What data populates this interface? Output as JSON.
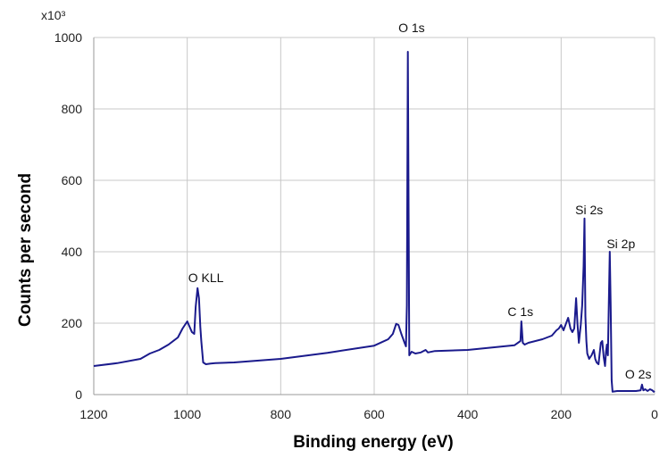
{
  "chart_data": {
    "type": "line",
    "xlabel": "Binding energy (eV)",
    "ylabel": "Counts per second",
    "y_multiplier_label": "x10³",
    "xlim": [
      1200,
      0
    ],
    "ylim": [
      0,
      1000
    ],
    "x_reversed": true,
    "grid": true,
    "x_ticks": [
      1200,
      1000,
      800,
      600,
      400,
      200,
      0
    ],
    "y_ticks": [
      0,
      200,
      400,
      600,
      800,
      1000
    ],
    "series": [
      {
        "color": "#1a1a8c",
        "x": [
          1200,
          1150,
          1100,
          1080,
          1060,
          1040,
          1020,
          1010,
          1000,
          995,
          990,
          985,
          982,
          978,
          975,
          972,
          970,
          966,
          960,
          950,
          940,
          900,
          800,
          700,
          600,
          570,
          560,
          553,
          548,
          542,
          535,
          532,
          530,
          528,
          525,
          520,
          512,
          500,
          490,
          485,
          470,
          400,
          300,
          287,
          285,
          282,
          278,
          270,
          240,
          220,
          210,
          205,
          200,
          195,
          185,
          180,
          176,
          172,
          168,
          165,
          162,
          158,
          155,
          152,
          150,
          148,
          146,
          144,
          140,
          135,
          130,
          127,
          124,
          120,
          115,
          112,
          109,
          106,
          104,
          102,
          100,
          98,
          96,
          94,
          92,
          90,
          80,
          60,
          40,
          30,
          27,
          24,
          20,
          15,
          10,
          5,
          2,
          0
        ],
        "values": [
          80,
          88,
          100,
          115,
          125,
          140,
          160,
          185,
          205,
          190,
          175,
          170,
          245,
          298,
          270,
          190,
          150,
          90,
          85,
          87,
          88,
          90,
          100,
          117,
          137,
          155,
          170,
          198,
          195,
          170,
          145,
          135,
          250,
          960,
          110,
          120,
          115,
          118,
          125,
          118,
          122,
          125,
          138,
          150,
          205,
          145,
          140,
          145,
          155,
          165,
          180,
          185,
          195,
          180,
          215,
          185,
          175,
          185,
          270,
          200,
          145,
          195,
          250,
          360,
          493,
          220,
          150,
          115,
          100,
          110,
          125,
          100,
          90,
          85,
          145,
          150,
          105,
          80,
          120,
          140,
          110,
          250,
          400,
          250,
          40,
          8,
          10,
          10,
          10,
          12,
          28,
          12,
          15,
          10,
          15,
          12,
          8,
          10
        ]
      }
    ],
    "annotations": [
      {
        "text": "O KLL",
        "x": 960,
        "y": 315
      },
      {
        "text": "O 1s",
        "x": 520,
        "y": 1015
      },
      {
        "text": "C 1s",
        "x": 287,
        "y": 220
      },
      {
        "text": "Si 2s",
        "x": 140,
        "y": 505
      },
      {
        "text": "Si 2p",
        "x": 72,
        "y": 410
      },
      {
        "text": "O 2s",
        "x": 35,
        "y": 45
      }
    ]
  }
}
